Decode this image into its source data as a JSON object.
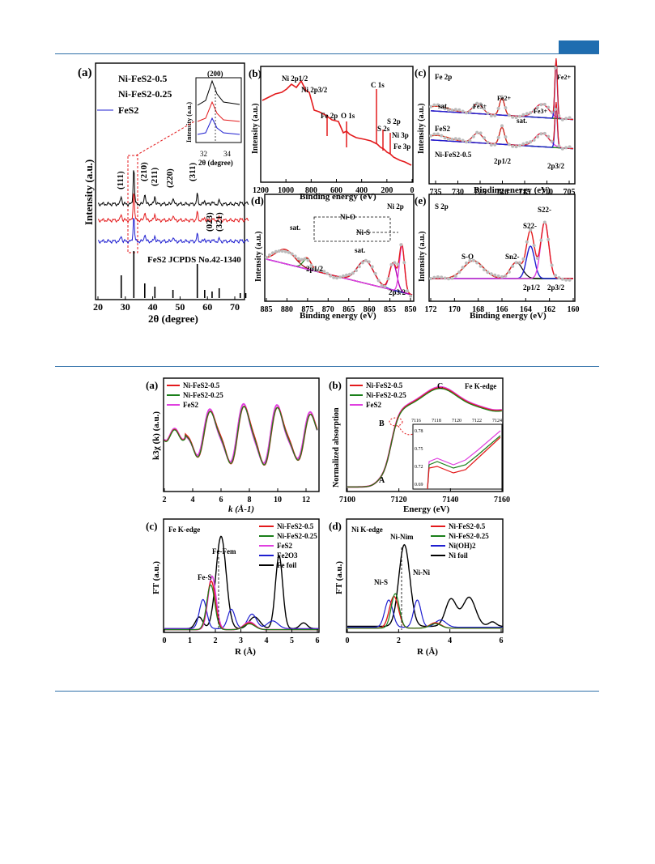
{
  "page": {
    "accent": "#1f6db0"
  },
  "figure1": {
    "a": {
      "label": "(a)",
      "legend": [
        "Ni-FeS2-0.5",
        "Ni-FeS2-0.25",
        "FeS2"
      ],
      "xlabel": "2θ (degree)",
      "ylabel": "Intensity (a.u.)",
      "xticks": [
        "20",
        "30",
        "40",
        "50",
        "60",
        "70"
      ],
      "peaks": [
        "(111)",
        "(200)",
        "(210)",
        "(211)",
        "(220)",
        "(311)",
        "(023)",
        "(321)"
      ],
      "jcpds": "FeS2 JCPDS  No.42-1340",
      "inset": {
        "title": "(200)",
        "xlabel": "2θ (degree)",
        "ylabel": "Intensity (a.u.)",
        "xticks": [
          "32",
          "34"
        ]
      }
    },
    "b": {
      "label": "(b)",
      "xlabel": "Binding energy (eV)",
      "ylabel": "Intensity (a.u.)",
      "xticks": [
        "1200",
        "1000",
        "800",
        "600",
        "400",
        "200",
        "0"
      ],
      "peaks": [
        "Ni 2p1/2",
        "Ni 2p3/2",
        "Fe 2p",
        "O 1s",
        "C 1s",
        "S 2s",
        "S 2p",
        "Ni 3p",
        "Fe 3p"
      ]
    },
    "c": {
      "label": "(c)",
      "title": "Fe 2p",
      "xlabel": "Binding energy (eV)",
      "ylabel": "Intensity (a.u.)",
      "xticks": [
        "735",
        "730",
        "725",
        "720",
        "715",
        "710",
        "705"
      ],
      "labels": [
        "sat.",
        "Fe3+",
        "Fe2+",
        "Fe3+",
        "sat.",
        "Fe2+",
        "FeS2",
        "Ni-FeS2-0.5",
        "2p1/2",
        "2p3/2"
      ]
    },
    "d": {
      "label": "(d)",
      "title": "Ni 2p",
      "xlabel": "Binding energy (eV)",
      "ylabel": "Intensity (a.u.)",
      "xticks": [
        "885",
        "880",
        "875",
        "870",
        "865",
        "860",
        "855",
        "850"
      ],
      "labels": [
        "Ni-O",
        "Ni-S",
        "sat.",
        "sat.",
        "2p1/2",
        "2p3/2"
      ]
    },
    "e": {
      "label": "(e)",
      "title": "S 2p",
      "xlabel": "Binding energy (eV)",
      "ylabel": "Intensity (a.u.)",
      "xticks": [
        "172",
        "170",
        "168",
        "166",
        "164",
        "162",
        "160"
      ],
      "labels": [
        "S-O",
        "Sn2-",
        "S22-",
        "S22-",
        "2p1/2",
        "2p3/2"
      ]
    }
  },
  "figure2": {
    "a": {
      "label": "(a)",
      "legend": [
        "Ni-FeS2-0.5",
        "Ni-FeS2-0.25",
        "FeS2"
      ],
      "xlabel": "k (Å-1)",
      "ylabel": "k3χ (k) (a.u.)",
      "xticks": [
        "2",
        "4",
        "6",
        "8",
        "10",
        "12"
      ]
    },
    "b": {
      "label": "(b)",
      "title": "Fe K-edge",
      "legend": [
        "Ni-FeS2-0.5",
        "Ni-FeS2-0.25",
        "FeS2"
      ],
      "xlabel": "Energy (eV)",
      "ylabel": "Normalized absorption",
      "xticks": [
        "7100",
        "7120",
        "7140",
        "7160"
      ],
      "points": [
        "A",
        "B",
        "C"
      ],
      "inset": {
        "xticks": [
          "7116",
          "7118",
          "7120",
          "7122",
          "7124"
        ],
        "yticks": [
          "0.78",
          "0.75",
          "0.72",
          "0.69"
        ]
      }
    },
    "c": {
      "label": "(c)",
      "title": "Fe K-edge",
      "legend": [
        "Ni-FeS2-0.5",
        "Ni-FeS2-0.25",
        "FeS2",
        "Fe2O3",
        "Fe foil"
      ],
      "xlabel": "R (Å)",
      "ylabel": "FT (a.u.)",
      "xticks": [
        "0",
        "1",
        "2",
        "3",
        "4",
        "5",
        "6"
      ],
      "labels": [
        "Fe-S",
        "Fe-Fem"
      ]
    },
    "d": {
      "label": "(d)",
      "title": "Ni K-edge",
      "legend": [
        "Ni-FeS2-0.5",
        "Ni-FeS2-0.25",
        "Ni(OH)2",
        "Ni foil"
      ],
      "xlabel": "R (Å)",
      "ylabel": "FT (a.u.)",
      "xticks": [
        "0",
        "2",
        "4",
        "6"
      ],
      "labels": [
        "Ni-S",
        "Ni-Nim",
        "Ni-Ni"
      ]
    }
  },
  "chart_data": [
    {
      "panel": "fig1-a",
      "type": "line",
      "series": [
        {
          "name": "Ni-FeS2-0.5",
          "color": "#000000"
        },
        {
          "name": "Ni-FeS2-0.25",
          "color": "#e31a1c"
        },
        {
          "name": "FeS2",
          "color": "#1f1fd0"
        }
      ],
      "x_range": [
        20,
        75
      ],
      "reference_peaks_2theta": [
        28.5,
        33.1,
        37.1,
        40.8,
        47.4,
        56.3,
        59.0,
        61.7,
        64.3,
        72.0,
        74.0
      ]
    },
    {
      "panel": "fig1-b",
      "type": "line",
      "x_range": [
        1200,
        0
      ],
      "series_color": "#e31a1c"
    },
    {
      "panel": "fig1-c",
      "type": "line",
      "x_range": [
        735,
        705
      ]
    },
    {
      "panel": "fig1-d",
      "type": "line",
      "x_range": [
        885,
        850
      ]
    },
    {
      "panel": "fig1-e",
      "type": "line",
      "x_range": [
        172,
        160
      ]
    },
    {
      "panel": "fig2-a",
      "type": "line",
      "x_range": [
        2,
        13
      ]
    },
    {
      "panel": "fig2-b",
      "type": "line",
      "x_range": [
        7100,
        7160
      ]
    },
    {
      "panel": "fig2-c",
      "type": "line",
      "x_range": [
        0,
        6
      ]
    },
    {
      "panel": "fig2-d",
      "type": "line",
      "x_range": [
        0,
        6
      ]
    }
  ]
}
